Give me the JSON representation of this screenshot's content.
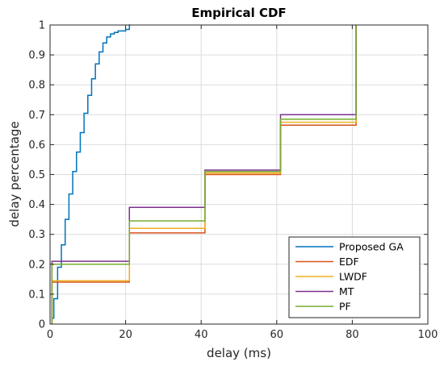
{
  "chart_data": {
    "type": "line",
    "step": true,
    "title": "Empirical CDF",
    "xlabel": "delay (ms)",
    "ylabel": "delay percentage",
    "xlim": [
      0,
      100
    ],
    "ylim": [
      0,
      1
    ],
    "xticks": [
      0,
      20,
      40,
      60,
      80,
      100
    ],
    "yticks": [
      0,
      0.1,
      0.2,
      0.3,
      0.4,
      0.5,
      0.6,
      0.7,
      0.8,
      0.9,
      1
    ],
    "ytick_labels": [
      "0",
      "0.1",
      "0.2",
      "0.3",
      "0.4",
      "0.5",
      "0.6",
      "0.7",
      "0.8",
      "0.9",
      "1"
    ],
    "grid": true,
    "legend_position": "bottom-right",
    "series": [
      {
        "name": "Proposed GA",
        "color": "#0072BD",
        "points": [
          [
            0.5,
            0
          ],
          [
            0.5,
            0.02
          ],
          [
            1.0,
            0.02
          ],
          [
            1.0,
            0.085
          ],
          [
            2.0,
            0.085
          ],
          [
            2.0,
            0.19
          ],
          [
            3.0,
            0.19
          ],
          [
            3.0,
            0.265
          ],
          [
            4.0,
            0.265
          ],
          [
            4.0,
            0.35
          ],
          [
            5.0,
            0.35
          ],
          [
            5.0,
            0.435
          ],
          [
            6.0,
            0.435
          ],
          [
            6.0,
            0.51
          ],
          [
            7.0,
            0.51
          ],
          [
            7.0,
            0.575
          ],
          [
            8.0,
            0.575
          ],
          [
            8.0,
            0.64
          ],
          [
            9.0,
            0.64
          ],
          [
            9.0,
            0.705
          ],
          [
            10.0,
            0.705
          ],
          [
            10.0,
            0.765
          ],
          [
            11.0,
            0.765
          ],
          [
            11.0,
            0.82
          ],
          [
            12.0,
            0.82
          ],
          [
            12.0,
            0.87
          ],
          [
            13.0,
            0.87
          ],
          [
            13.0,
            0.91
          ],
          [
            14.0,
            0.91
          ],
          [
            14.0,
            0.94
          ],
          [
            15.0,
            0.94
          ],
          [
            15.0,
            0.96
          ],
          [
            16.0,
            0.96
          ],
          [
            16.0,
            0.97
          ],
          [
            17.0,
            0.97
          ],
          [
            17.0,
            0.975
          ],
          [
            18.0,
            0.975
          ],
          [
            18.0,
            0.98
          ],
          [
            20.0,
            0.98
          ],
          [
            20.0,
            0.985
          ],
          [
            21.0,
            0.985
          ],
          [
            21.0,
            1.0
          ],
          [
            21.2,
            1.0
          ]
        ]
      },
      {
        "name": "EDF",
        "color": "#D95319",
        "points": [
          [
            0.5,
            0
          ],
          [
            0.5,
            0.14
          ],
          [
            21,
            0.14
          ],
          [
            21,
            0.305
          ],
          [
            41,
            0.305
          ],
          [
            41,
            0.5
          ],
          [
            61,
            0.5
          ],
          [
            61,
            0.665
          ],
          [
            81,
            0.665
          ],
          [
            81,
            1.0
          ]
        ]
      },
      {
        "name": "LWDF",
        "color": "#EDB120",
        "points": [
          [
            0.5,
            0
          ],
          [
            0.5,
            0.145
          ],
          [
            21,
            0.145
          ],
          [
            21,
            0.32
          ],
          [
            41,
            0.32
          ],
          [
            41,
            0.505
          ],
          [
            61,
            0.505
          ],
          [
            61,
            0.675
          ],
          [
            81,
            0.675
          ],
          [
            81,
            1.0
          ]
        ]
      },
      {
        "name": "MT",
        "color": "#7E2F8E",
        "points": [
          [
            0.5,
            0
          ],
          [
            0.5,
            0.21
          ],
          [
            21,
            0.21
          ],
          [
            21,
            0.39
          ],
          [
            41,
            0.39
          ],
          [
            41,
            0.515
          ],
          [
            61,
            0.515
          ],
          [
            61,
            0.7
          ],
          [
            81,
            0.7
          ],
          [
            81,
            1.0
          ]
        ]
      },
      {
        "name": "PF",
        "color": "#77AC30",
        "points": [
          [
            0.5,
            0
          ],
          [
            0.5,
            0.2
          ],
          [
            21,
            0.2
          ],
          [
            21,
            0.345
          ],
          [
            41,
            0.345
          ],
          [
            41,
            0.51
          ],
          [
            61,
            0.51
          ],
          [
            61,
            0.685
          ],
          [
            81,
            0.685
          ],
          [
            81,
            1.0
          ]
        ]
      }
    ]
  }
}
